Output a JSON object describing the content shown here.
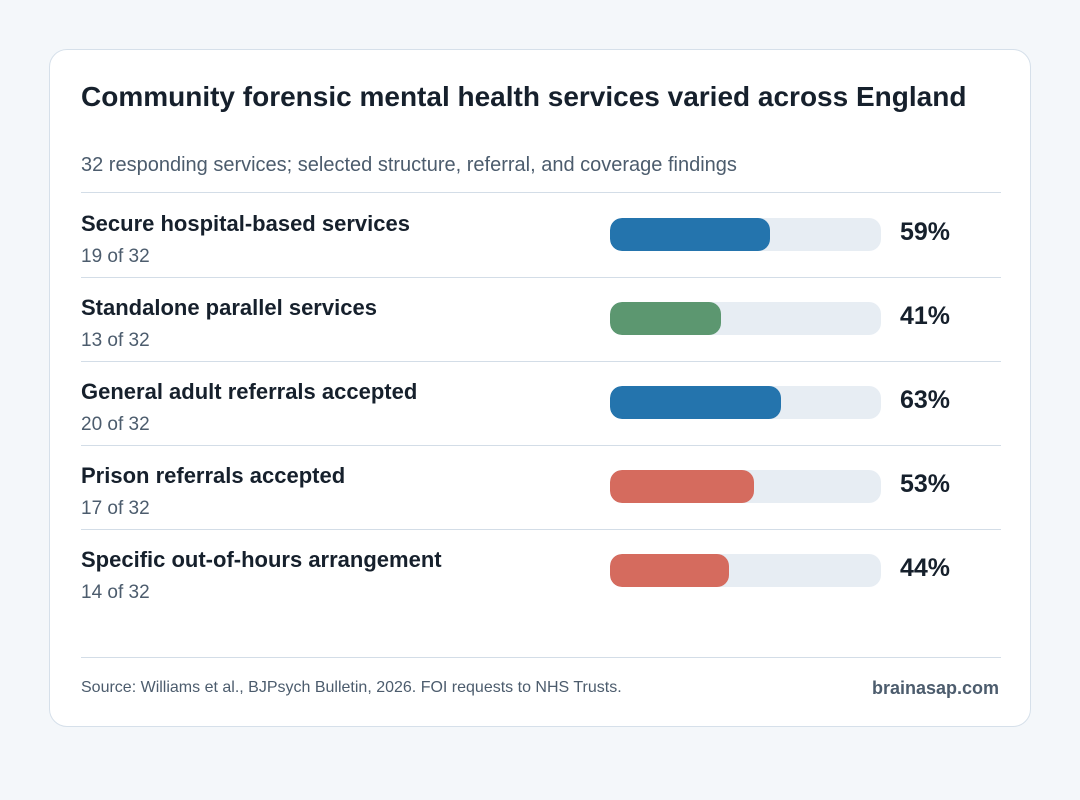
{
  "chart_data": {
    "type": "bar",
    "title": "Community forensic mental health services varied across England",
    "subtitle": "32 responding services; selected structure, referral, and coverage findings",
    "categories": [
      "Secure hospital-based services",
      "Standalone parallel services",
      "General adult referrals accepted",
      "Prison referrals accepted",
      "Specific out-of-hours arrangement"
    ],
    "counts": [
      "19 of 32",
      "13 of 32",
      "20 of 32",
      "17 of 32",
      "14 of 32"
    ],
    "values": [
      59,
      41,
      63,
      53,
      44
    ],
    "value_labels": [
      "59%",
      "41%",
      "63%",
      "53%",
      "44%"
    ],
    "colors": [
      "#2474ad",
      "#5c9770",
      "#2474ad",
      "#d56b5e",
      "#d56b5e"
    ],
    "track_color": "#e7edf3",
    "xlim": [
      0,
      100
    ],
    "grid": false
  },
  "footer": {
    "source": "Source: Williams et al., BJPsych Bulletin, 2026. FOI requests to NHS Trusts.",
    "brand": "brainasap.com"
  }
}
